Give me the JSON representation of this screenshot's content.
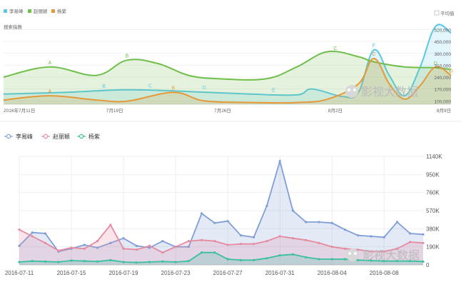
{
  "chart_data": [
    {
      "type": "area",
      "title": "",
      "ylabel": "搜索指数",
      "avg_toggle_label": "平均值",
      "legend_position": "top-left",
      "x_tick_labels": [
        "2016年7月11日",
        "7月19日",
        "7月26日",
        "8月2日",
        "8月9日"
      ],
      "y_tick_labels": [
        "520,000",
        "450,000",
        "380,000",
        "310,000",
        "240,000",
        "170,000",
        "100,000"
      ],
      "ylim": [
        80000,
        560000
      ],
      "xlim": [
        0,
        29
      ],
      "series": [
        {
          "name": "李易峰",
          "color": "#5bc8e8",
          "points": [
            [
              0,
              140000
            ],
            [
              4,
              150000
            ],
            [
              8,
              165000
            ],
            [
              12,
              155000
            ],
            [
              16,
              140000
            ],
            [
              19,
              135000
            ],
            [
              20,
              170000
            ],
            [
              22,
              125000
            ],
            [
              23,
              150000
            ],
            [
              24,
              400000
            ],
            [
              25,
              250000
            ],
            [
              26,
              130000
            ],
            [
              27,
              300000
            ],
            [
              28,
              540000
            ],
            [
              29,
              500000
            ]
          ]
        },
        {
          "name": "赵丽颖",
          "color": "#6fbf4a",
          "points": [
            [
              0,
              240000
            ],
            [
              3,
              300000
            ],
            [
              6,
              250000
            ],
            [
              8,
              340000
            ],
            [
              10,
              320000
            ],
            [
              12,
              250000
            ],
            [
              14,
              230000
            ],
            [
              17,
              230000
            ],
            [
              19,
              300000
            ],
            [
              21,
              390000
            ],
            [
              23,
              360000
            ],
            [
              24,
              330000
            ],
            [
              26,
              300000
            ],
            [
              28,
              295000
            ],
            [
              29,
              285000
            ]
          ]
        },
        {
          "name": "杨紫",
          "color": "#e59a3a",
          "points": [
            [
              0,
              105000
            ],
            [
              3,
              130000
            ],
            [
              6,
              105000
            ],
            [
              8,
              98000
            ],
            [
              11,
              150000
            ],
            [
              13,
              100000
            ],
            [
              16,
              90000
            ],
            [
              19,
              90000
            ],
            [
              21,
              110000
            ],
            [
              23,
              200000
            ],
            [
              24,
              350000
            ],
            [
              25,
              200000
            ],
            [
              26,
              110000
            ],
            [
              27,
              190000
            ],
            [
              28,
              300000
            ],
            [
              29,
              250000
            ]
          ]
        }
      ],
      "annotations": [
        {
          "letter": "A",
          "x": 3,
          "series": "赵丽颖"
        },
        {
          "letter": "A",
          "x": 3,
          "series": "杨紫"
        },
        {
          "letter": "B",
          "x": 8,
          "series": "赵丽颖"
        },
        {
          "letter": "B",
          "x": 6.5,
          "series": "李易峰"
        },
        {
          "letter": "C",
          "x": 9.5,
          "series": "李易峰"
        },
        {
          "letter": "B",
          "x": 11,
          "series": "杨紫"
        },
        {
          "letter": "D",
          "x": 13,
          "series": "李易峰"
        },
        {
          "letter": "E",
          "x": 17.5,
          "series": "李易峰"
        },
        {
          "letter": "C",
          "x": 21.5,
          "series": "赵丽颖"
        },
        {
          "letter": "F",
          "x": 24,
          "series": "李易峰"
        },
        {
          "letter": "C",
          "x": 24,
          "series": "杨紫"
        },
        {
          "letter": "D",
          "x": 28,
          "series": "赵丽颖"
        },
        {
          "letter": "D",
          "x": 29,
          "series": "杨紫"
        }
      ]
    },
    {
      "type": "area",
      "title": "",
      "legend_position": "top-left",
      "x_tick_labels": [
        "2016-07-11",
        "2016-07-15",
        "2016-07-19",
        "2016-07-23",
        "2016-07-27",
        "2016-07-31",
        "2016-08-04",
        "2016-08-08"
      ],
      "x_tick_index": [
        0,
        4,
        8,
        12,
        16,
        20,
        24,
        28
      ],
      "y_tick_labels": [
        "0",
        "190K",
        "380K",
        "570K",
        "760K",
        "950K",
        "1140K"
      ],
      "ylim": [
        0,
        1140000
      ],
      "categories": [
        "2016-07-11",
        "2016-07-12",
        "2016-07-13",
        "2016-07-14",
        "2016-07-15",
        "2016-07-16",
        "2016-07-17",
        "2016-07-18",
        "2016-07-19",
        "2016-07-20",
        "2016-07-21",
        "2016-07-22",
        "2016-07-23",
        "2016-07-24",
        "2016-07-25",
        "2016-07-26",
        "2016-07-27",
        "2016-07-28",
        "2016-07-29",
        "2016-07-30",
        "2016-07-31",
        "2016-08-01",
        "2016-08-02",
        "2016-08-03",
        "2016-08-04",
        "2016-08-05",
        "2016-08-06",
        "2016-08-07",
        "2016-08-08",
        "2016-08-09",
        "2016-08-10",
        "2016-08-11"
      ],
      "series": [
        {
          "name": "李易峰",
          "color": "#7f9ed8",
          "values": [
            200000,
            340000,
            330000,
            140000,
            170000,
            210000,
            180000,
            230000,
            280000,
            200000,
            180000,
            250000,
            190000,
            190000,
            540000,
            440000,
            460000,
            310000,
            290000,
            620000,
            1090000,
            570000,
            450000,
            450000,
            440000,
            370000,
            310000,
            300000,
            290000,
            450000,
            330000,
            320000
          ]
        },
        {
          "name": "赵丽颖",
          "color": "#e58aa0",
          "values": [
            370000,
            300000,
            230000,
            150000,
            180000,
            170000,
            250000,
            420000,
            170000,
            160000,
            200000,
            130000,
            190000,
            250000,
            260000,
            250000,
            210000,
            220000,
            220000,
            250000,
            300000,
            280000,
            260000,
            230000,
            190000,
            170000,
            160000,
            140000,
            140000,
            170000,
            240000,
            230000
          ]
        },
        {
          "name": "杨紫",
          "color": "#3bbfa0",
          "values": [
            30000,
            40000,
            35000,
            30000,
            45000,
            40000,
            35000,
            50000,
            30000,
            25000,
            30000,
            35000,
            30000,
            40000,
            130000,
            130000,
            60000,
            50000,
            50000,
            70000,
            100000,
            110000,
            80000,
            60000,
            60000,
            60000,
            50000,
            45000,
            40000,
            40000,
            40000,
            35000
          ]
        }
      ]
    }
  ],
  "watermark": "影视大数据",
  "colors": {
    "grid": "#e6e6e6",
    "axis": "#cccccc"
  }
}
